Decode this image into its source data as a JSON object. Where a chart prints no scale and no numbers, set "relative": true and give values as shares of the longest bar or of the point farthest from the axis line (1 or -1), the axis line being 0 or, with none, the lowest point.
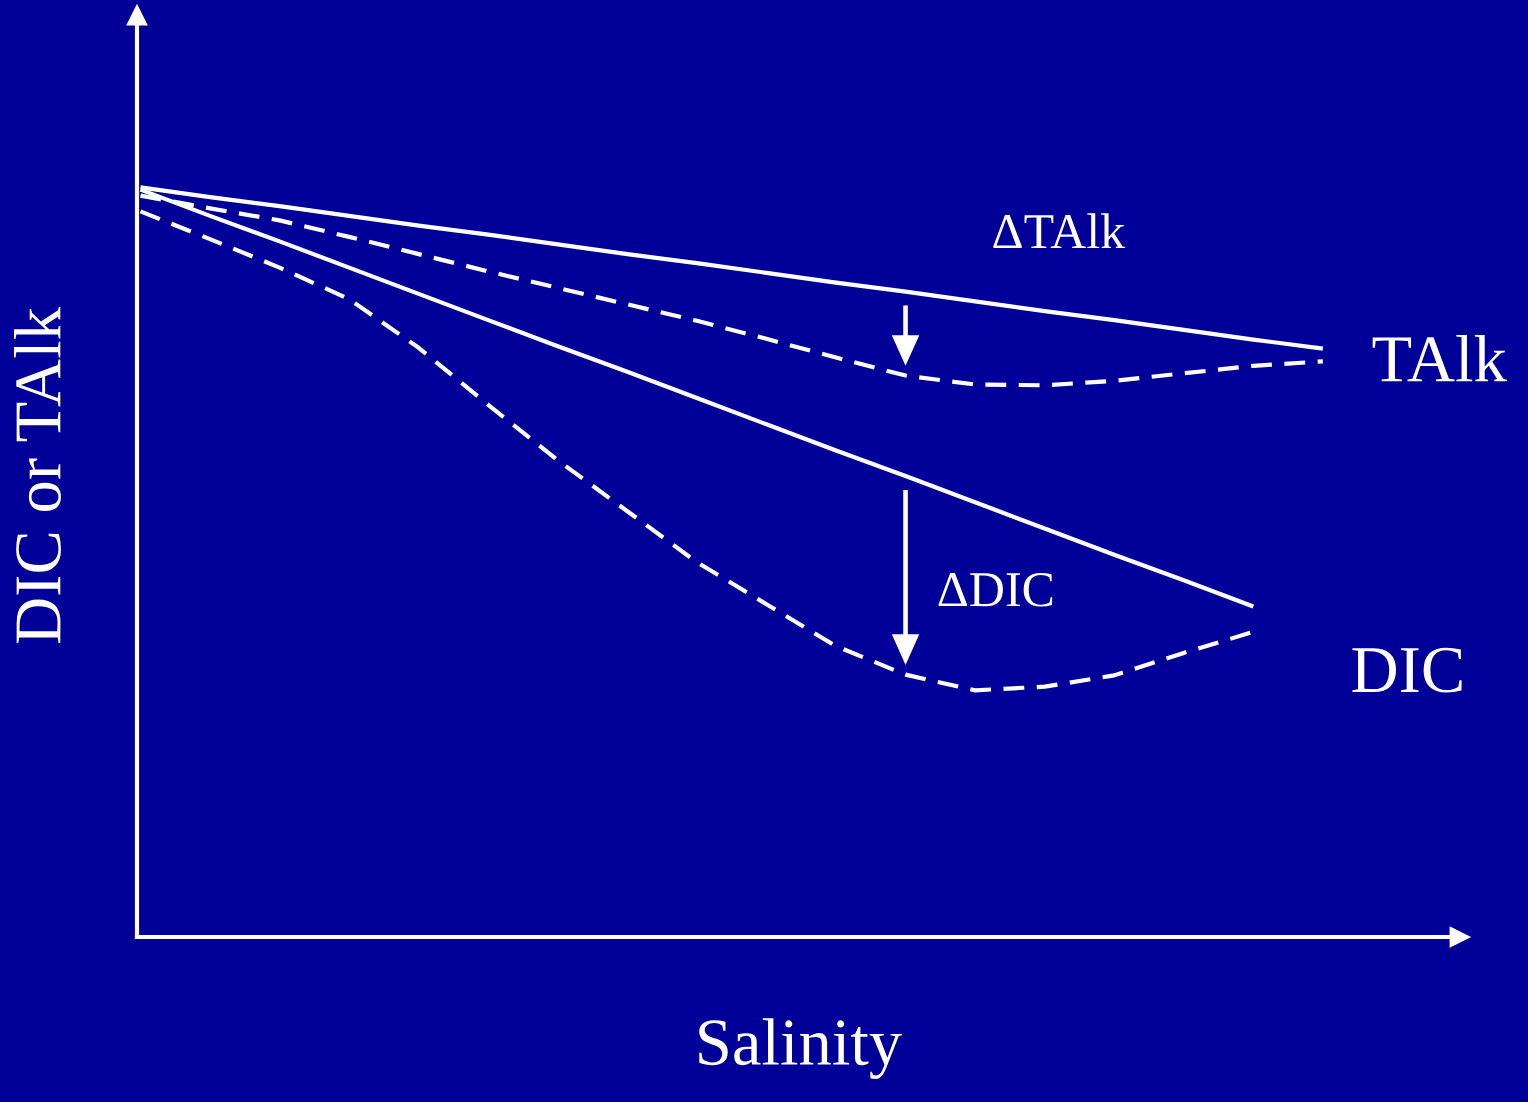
{
  "chart_data": {
    "type": "line",
    "relative": true,
    "xlabel": "Salinity",
    "ylabel": "DIC or TAlk",
    "categories": [
      null,
      null,
      null,
      null,
      null,
      null,
      null,
      null,
      null,
      null,
      null,
      null,
      null,
      null,
      null,
      null,
      null,
      null
    ],
    "series": [
      {
        "name": "TAlk",
        "color": "#ffffff",
        "line_style": "solid",
        "values": [
          1.0,
          0.987,
          0.975,
          0.962,
          0.949,
          0.937,
          0.924,
          0.911,
          0.899,
          0.886,
          0.873,
          0.861,
          0.848,
          0.835,
          0.823,
          0.81,
          0.797,
          0.785
        ]
      },
      {
        "color": "#ffffff",
        "line_style": "dashed",
        "values": [
          0.989,
          0.972,
          0.956,
          0.934,
          0.911,
          0.888,
          0.866,
          0.844,
          0.822,
          0.798,
          0.773,
          0.749,
          0.737,
          0.736,
          0.742,
          0.752,
          0.762,
          0.768
        ]
      },
      {
        "name": "DIC",
        "color": "#ffffff",
        "line_style": "solid",
        "values": [
          0.997,
          0.962,
          0.928,
          0.893,
          0.858,
          0.823,
          0.788,
          0.754,
          0.719,
          0.684,
          0.649,
          0.615,
          0.58,
          0.545,
          0.51,
          0.476,
          0.441,
          null
        ]
      },
      {
        "color": "#ffffff",
        "line_style": "dashed",
        "values": [
          0.968,
          0.931,
          0.893,
          0.851,
          0.786,
          0.71,
          0.636,
          0.568,
          0.5,
          0.444,
          0.388,
          0.35,
          0.329,
          0.334,
          0.349,
          0.379,
          0.407,
          null
        ]
      }
    ],
    "annotations": [
      "ΔTAlk",
      "ΔDIC"
    ]
  }
}
